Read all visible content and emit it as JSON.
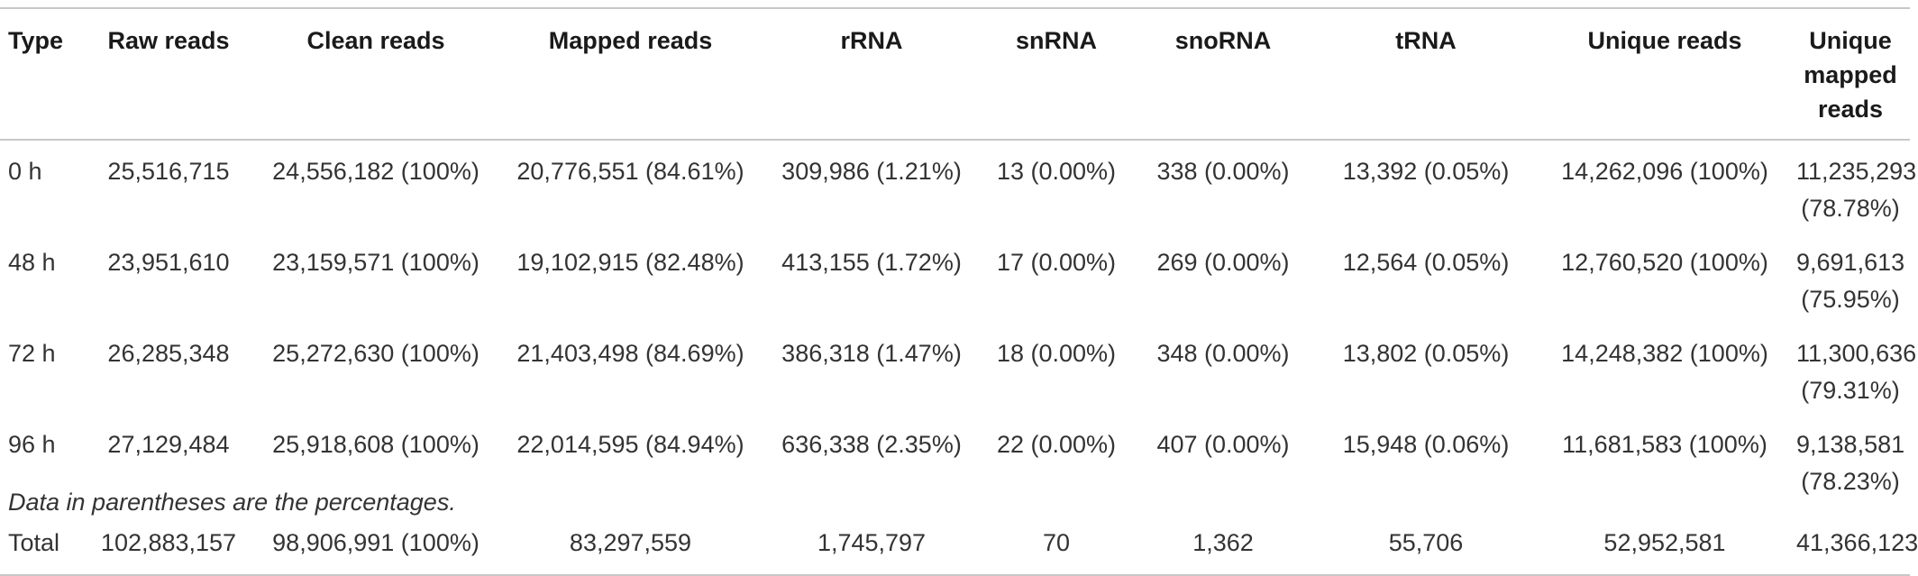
{
  "table": {
    "headers": [
      "Type",
      "Raw reads",
      "Clean reads",
      "Mapped reads",
      "rRNA",
      "snRNA",
      "snoRNA",
      "tRNA",
      "Unique reads",
      "Unique mapped reads"
    ],
    "rows": [
      [
        "0 h",
        "25,516,715",
        "24,556,182 (100%)",
        "20,776,551 (84.61%)",
        "309,986 (1.21%)",
        "13 (0.00%)",
        "338 (0.00%)",
        "13,392 (0.05%)",
        "14,262,096 (100%)",
        "11,235,293 (78.78%)"
      ],
      [
        "48 h",
        "23,951,610",
        "23,159,571 (100%)",
        "19,102,915 (82.48%)",
        "413,155 (1.72%)",
        "17 (0.00%)",
        "269 (0.00%)",
        "12,564 (0.05%)",
        "12,760,520 (100%)",
        "9,691,613 (75.95%)"
      ],
      [
        "72 h",
        "26,285,348",
        "25,272,630 (100%)",
        "21,403,498 (84.69%)",
        "386,318 (1.47%)",
        "18 (0.00%)",
        "348 (0.00%)",
        "13,802 (0.05%)",
        "14,248,382 (100%)",
        "11,300,636 (79.31%)"
      ],
      [
        "96 h",
        "27,129,484",
        "25,918,608 (100%)",
        "22,014,595 (84.94%)",
        "636,338 (2.35%)",
        "22 (0.00%)",
        "407 (0.00%)",
        "15,948 (0.06%)",
        "11,681,583 (100%)",
        "9,138,581 (78.23%)"
      ],
      [
        "Total",
        "102,883,157",
        "98,906,991 (100%)",
        "83,297,559",
        "1,745,797",
        "70",
        "1,362",
        "55,706",
        "52,952,581",
        "41,366,123"
      ]
    ]
  },
  "footnote": "Data in parentheses are the percentages."
}
